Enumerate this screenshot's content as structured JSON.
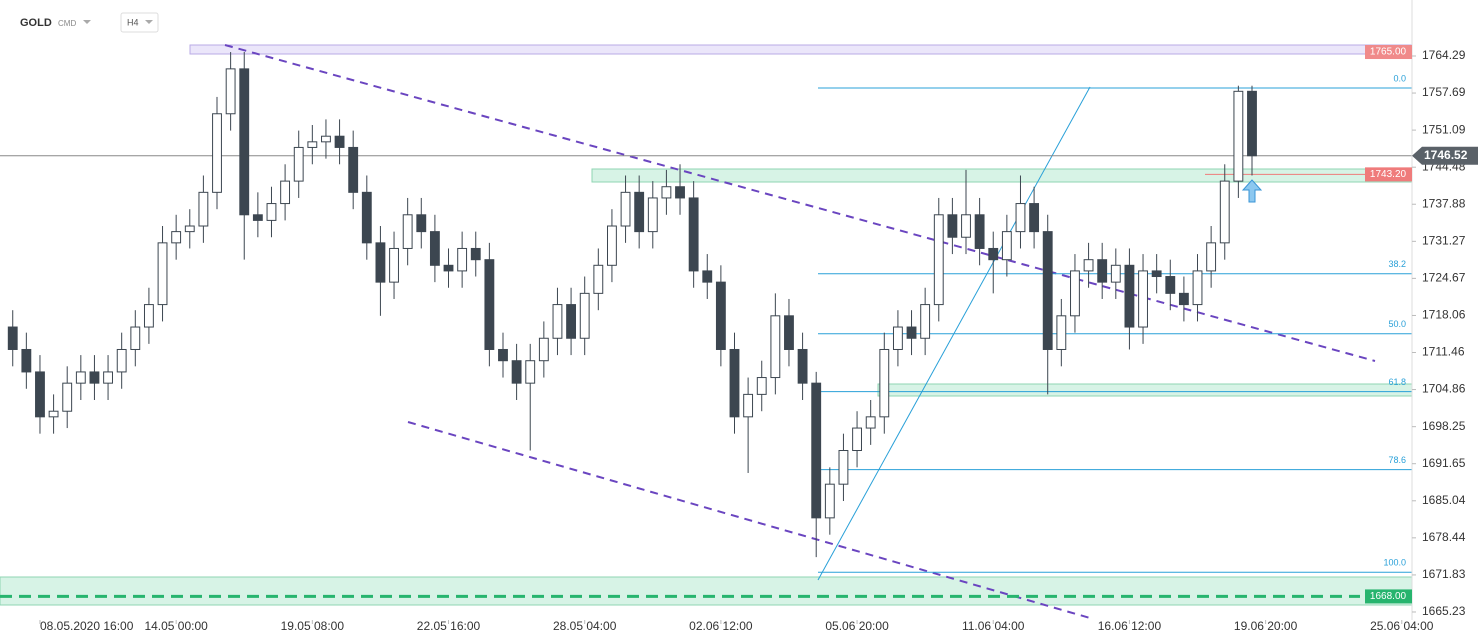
{
  "chart_data": {
    "type": "candlestick",
    "title": "GOLD",
    "subtitle": "CMD",
    "timeframe": "H4",
    "up_color": "#ffffff",
    "down_color": "#3c4650",
    "x": [
      -4,
      -2,
      0,
      2,
      4,
      6,
      8,
      10,
      12,
      14,
      16,
      18,
      20,
      22,
      24,
      26,
      28,
      30,
      32,
      34,
      36,
      38,
      40,
      42,
      44,
      46,
      48,
      50,
      52,
      54,
      56,
      58,
      60,
      62,
      64,
      66,
      68,
      70,
      72,
      74,
      76,
      78,
      80,
      82,
      84,
      86,
      88,
      90,
      92,
      94,
      96,
      98,
      100,
      102,
      104,
      106,
      108,
      110,
      112,
      114,
      116,
      118,
      120,
      122,
      124,
      126,
      128,
      130,
      132,
      134,
      136,
      138,
      140,
      142,
      144,
      146,
      148,
      150,
      152,
      154,
      156,
      158,
      160,
      162,
      164,
      166,
      168,
      170,
      172,
      174,
      176,
      178
    ],
    "open": [
      1716,
      1712,
      1708,
      1700,
      1701,
      1706,
      1708,
      1706,
      1708,
      1712,
      1716,
      1720,
      1731,
      1733,
      1734,
      1740,
      1754,
      1762,
      1736,
      1735,
      1738,
      1742,
      1748,
      1749,
      1750,
      1748,
      1740,
      1731,
      1724,
      1730,
      1736,
      1733,
      1727,
      1726,
      1730,
      1728,
      1712,
      1710,
      1706,
      1710,
      1714,
      1720,
      1714,
      1722,
      1727,
      1734,
      1740,
      1733,
      1739,
      1741,
      1739,
      1726,
      1724,
      1712,
      1700,
      1704,
      1707,
      1718,
      1712,
      1706,
      1682,
      1688,
      1694,
      1698,
      1700,
      1712,
      1716,
      1714,
      1720,
      1736,
      1732,
      1736,
      1730,
      1728,
      1733,
      1738,
      1733,
      1712,
      1718,
      1726,
      1728,
      1724,
      1727,
      1716,
      1726,
      1725,
      1722,
      1720,
      1726,
      1731,
      1742,
      1758
    ],
    "high": [
      1719,
      1715,
      1711,
      1704,
      1709,
      1711,
      1711,
      1711,
      1715,
      1719,
      1723,
      1734,
      1736,
      1737,
      1743,
      1757,
      1765,
      1765,
      1740,
      1741,
      1745,
      1751,
      1752,
      1753,
      1753,
      1751,
      1743,
      1734,
      1733,
      1739,
      1739,
      1736,
      1730,
      1733,
      1733,
      1731,
      1715,
      1713,
      1713,
      1717,
      1723,
      1723,
      1725,
      1730,
      1737,
      1743,
      1743,
      1742,
      1744,
      1745,
      1742,
      1729,
      1727,
      1715,
      1707,
      1710,
      1722,
      1721,
      1715,
      1708,
      1691,
      1697,
      1701,
      1703,
      1715,
      1719,
      1719,
      1723,
      1739,
      1739,
      1744,
      1739,
      1733,
      1736,
      1743,
      1741,
      1736,
      1721,
      1729,
      1731,
      1731,
      1730,
      1730,
      1729,
      1729,
      1728,
      1725,
      1729,
      1734,
      1745,
      1759,
      1759
    ],
    "low": [
      1709,
      1705,
      1697,
      1697,
      1698,
      1703,
      1703,
      1703,
      1705,
      1709,
      1713,
      1717,
      1728,
      1730,
      1731,
      1737,
      1751,
      1728,
      1732,
      1732,
      1735,
      1739,
      1745,
      1746,
      1745,
      1737,
      1728,
      1718,
      1721,
      1727,
      1730,
      1724,
      1723,
      1723,
      1725,
      1709,
      1707,
      1703,
      1694,
      1707,
      1711,
      1711,
      1711,
      1719,
      1724,
      1731,
      1730,
      1730,
      1736,
      1736,
      1723,
      1721,
      1709,
      1697,
      1690,
      1701,
      1704,
      1709,
      1703,
      1675,
      1679,
      1685,
      1691,
      1695,
      1697,
      1709,
      1711,
      1711,
      1717,
      1729,
      1729,
      1727,
      1722,
      1725,
      1730,
      1730,
      1704,
      1709,
      1715,
      1723,
      1721,
      1721,
      1712,
      1713,
      1722,
      1719,
      1717,
      1717,
      1723,
      1728,
      1739,
      1743
    ],
    "close": [
      1712,
      1708,
      1700,
      1701,
      1706,
      1708,
      1706,
      1708,
      1712,
      1716,
      1720,
      1731,
      1733,
      1734,
      1740,
      1754,
      1762,
      1736,
      1735,
      1738,
      1742,
      1748,
      1749,
      1750,
      1748,
      1740,
      1731,
      1724,
      1730,
      1736,
      1733,
      1727,
      1726,
      1730,
      1728,
      1712,
      1710,
      1706,
      1710,
      1714,
      1720,
      1714,
      1722,
      1727,
      1734,
      1740,
      1733,
      1739,
      1741,
      1739,
      1726,
      1724,
      1712,
      1700,
      1704,
      1707,
      1718,
      1712,
      1706,
      1682,
      1688,
      1694,
      1698,
      1700,
      1712,
      1716,
      1714,
      1720,
      1736,
      1732,
      1736,
      1730,
      1728,
      1733,
      1738,
      1733,
      1712,
      1718,
      1726,
      1728,
      1724,
      1727,
      1716,
      1726,
      1725,
      1722,
      1720,
      1726,
      1731,
      1742,
      1758,
      1746.52
    ],
    "xlim": [
      -5.87,
      201.5
    ],
    "ylim": [
      1663.8,
      1774.27
    ],
    "xticks": [
      {
        "value": 0,
        "label": "08.05.2020 16:00"
      },
      {
        "value": 20,
        "label": "14.05 00:00"
      },
      {
        "value": 40,
        "label": "19.05 08:00"
      },
      {
        "value": 60,
        "label": "22.05 16:00"
      },
      {
        "value": 80,
        "label": "28.05 04:00"
      },
      {
        "value": 100,
        "label": "02.06 12:00"
      },
      {
        "value": 120,
        "label": "05.06 20:00"
      },
      {
        "value": 140,
        "label": "11.06 04:00"
      },
      {
        "value": 160,
        "label": "16.06 12:00"
      },
      {
        "value": 180,
        "label": "19.06 20:00"
      },
      {
        "value": 200,
        "label": "25.06 04:00"
      }
    ],
    "yticks": [
      1764.29,
      1757.69,
      1751.09,
      1744.48,
      1737.88,
      1731.27,
      1724.67,
      1718.06,
      1711.46,
      1704.86,
      1698.25,
      1691.65,
      1685.04,
      1678.44,
      1671.83,
      1665.23
    ],
    "price_tags": [
      {
        "value": 1765,
        "label": "1765.00",
        "color": "#f08a8a",
        "line": "none"
      },
      {
        "value": 1743.2,
        "label": "1743.20",
        "color": "#ef7b7b",
        "line": "short"
      },
      {
        "value": 1746.52,
        "label": "1746.52",
        "color": "#5a6168",
        "line": "solid"
      },
      {
        "value": 1668,
        "label": "1668.00",
        "color": "#27b46e",
        "line": "dashed"
      }
    ],
    "fib_color": "#29a0d8",
    "fib_levels": [
      {
        "name": "0.0",
        "value": 1758.6
      },
      {
        "name": "38.2",
        "value": 1725.5
      },
      {
        "name": "50.0",
        "value": 1714.8
      },
      {
        "name": "61.8",
        "value": 1704.5
      },
      {
        "name": "78.6",
        "value": 1690.6
      },
      {
        "name": "100.0",
        "value": 1672.3
      }
    ]
  }
}
